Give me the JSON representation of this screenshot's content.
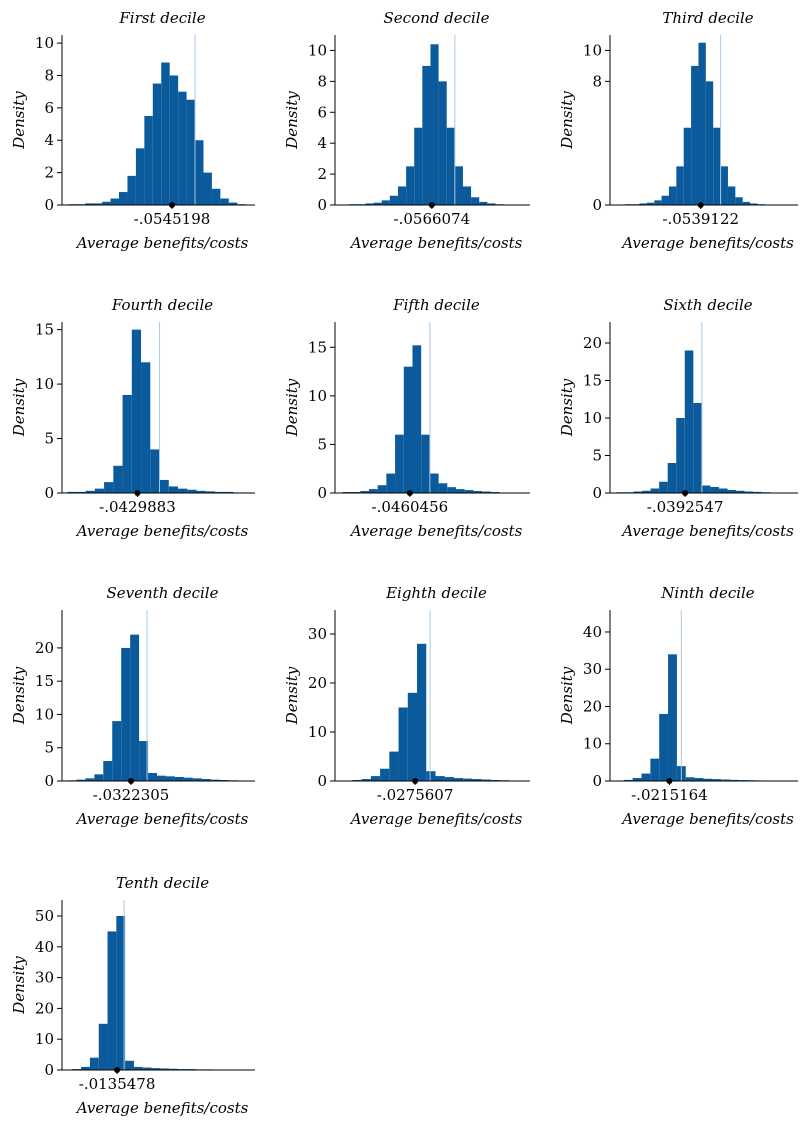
{
  "chart_data": [
    {
      "type": "histogram",
      "title": "First decile",
      "xlabel": "Average benefits/costs",
      "ylabel": "Density",
      "xlim": [
        -0.315,
        0.142
      ],
      "ylim": [
        0,
        10.5
      ],
      "yticks": [
        0,
        2,
        4,
        6,
        8,
        10
      ],
      "xticks": [
        {
          "value": -0.0545198,
          "label": "-.0545198"
        }
      ],
      "reference_line": 0,
      "color": "#0a5a9c",
      "bins": [
        -0.3,
        -0.28,
        -0.26,
        -0.24,
        -0.22,
        -0.2,
        -0.18,
        -0.16,
        -0.14,
        -0.12,
        -0.1,
        -0.08,
        -0.06,
        -0.04,
        -0.02,
        0,
        0.02,
        0.04,
        0.06,
        0.08,
        0.1,
        0.12
      ],
      "values": [
        0.05,
        0.05,
        0.1,
        0.1,
        0.2,
        0.4,
        0.8,
        1.8,
        3.5,
        5.5,
        7.5,
        8.8,
        8.0,
        7.0,
        6.5,
        4.0,
        2.0,
        1.0,
        0.4,
        0.15,
        0.05
      ]
    },
    {
      "type": "histogram",
      "title": "Second decile",
      "xlabel": "Average benefits/costs",
      "ylabel": "Density",
      "xlim": [
        -0.295,
        0.185
      ],
      "ylim": [
        0,
        11
      ],
      "yticks": [
        0,
        2,
        4,
        6,
        8,
        10
      ],
      "xticks": [
        {
          "value": -0.0566074,
          "label": "-.0566074"
        }
      ],
      "reference_line": 0,
      "color": "#0a5a9c",
      "bins": [
        -0.26,
        -0.24,
        -0.22,
        -0.2,
        -0.18,
        -0.16,
        -0.14,
        -0.12,
        -0.1,
        -0.08,
        -0.06,
        -0.04,
        -0.02,
        0,
        0.02,
        0.04,
        0.06,
        0.08,
        0.1,
        0.12,
        0.14
      ],
      "values": [
        0.05,
        0.05,
        0.1,
        0.15,
        0.3,
        0.6,
        1.2,
        2.5,
        5,
        9,
        10.4,
        8,
        5,
        2.5,
        1.2,
        0.5,
        0.2,
        0.1,
        0.05,
        0.02
      ]
    },
    {
      "type": "histogram",
      "title": "Third decile",
      "xlabel": "Average benefits/costs",
      "ylabel": "Density",
      "xlim": [
        -0.3,
        0.21
      ],
      "ylim": [
        0,
        11
      ],
      "yticks": [
        0,
        8,
        10
      ],
      "xticks": [
        {
          "value": -0.0539122,
          "label": "-.0539122"
        }
      ],
      "reference_line": 0,
      "color": "#0a5a9c",
      "bins": [
        -0.26,
        -0.24,
        -0.22,
        -0.2,
        -0.18,
        -0.16,
        -0.14,
        -0.12,
        -0.1,
        -0.08,
        -0.06,
        -0.04,
        -0.02,
        0,
        0.02,
        0.04,
        0.06,
        0.08,
        0.1,
        0.12,
        0.14
      ],
      "values": [
        0.05,
        0.05,
        0.1,
        0.15,
        0.3,
        0.6,
        1.2,
        2.5,
        5,
        9,
        10.5,
        8,
        5,
        2.5,
        1.2,
        0.5,
        0.2,
        0.1,
        0.05,
        0.02
      ]
    },
    {
      "type": "histogram",
      "title": "Fourth decile",
      "xlabel": "Average benefits/costs",
      "ylabel": "Density",
      "xlim": [
        -0.19,
        0.186
      ],
      "ylim": [
        0,
        15.7
      ],
      "yticks": [
        0,
        5,
        10,
        15
      ],
      "xticks": [
        {
          "value": -0.0429883,
          "label": "-.0429883"
        }
      ],
      "reference_line": 0,
      "color": "#0a5a9c",
      "bins": [
        -0.18,
        -0.162,
        -0.144,
        -0.126,
        -0.108,
        -0.09,
        -0.072,
        -0.054,
        -0.036,
        -0.018,
        0,
        0.018,
        0.036,
        0.054,
        0.072,
        0.09,
        0.108,
        0.126,
        0.144,
        0.162,
        0.18
      ],
      "values": [
        0.1,
        0.1,
        0.2,
        0.4,
        1,
        2.5,
        9,
        15,
        12,
        4,
        1.2,
        0.6,
        0.4,
        0.3,
        0.2,
        0.15,
        0.1,
        0.1,
        0.05,
        0.05
      ]
    },
    {
      "type": "histogram",
      "title": "Fifth decile",
      "xlabel": "Average benefits/costs",
      "ylabel": "Density",
      "xlim": [
        -0.218,
        0.23
      ],
      "ylim": [
        0,
        17.6
      ],
      "yticks": [
        0,
        5,
        10,
        15
      ],
      "xticks": [
        {
          "value": -0.0460456,
          "label": "-.0460456"
        }
      ],
      "reference_line": 0,
      "color": "#0a5a9c",
      "bins": [
        -0.2,
        -0.18,
        -0.16,
        -0.14,
        -0.12,
        -0.1,
        -0.08,
        -0.06,
        -0.04,
        -0.02,
        0,
        0.02,
        0.04,
        0.06,
        0.08,
        0.1,
        0.12,
        0.14,
        0.16,
        0.18,
        0.2
      ],
      "values": [
        0.1,
        0.1,
        0.2,
        0.4,
        0.8,
        2,
        6,
        13,
        15.2,
        6,
        2,
        1,
        0.6,
        0.4,
        0.3,
        0.2,
        0.15,
        0.1,
        0.05,
        0.05
      ]
    },
    {
      "type": "histogram",
      "title": "Sixth decile",
      "xlabel": "Average benefits/costs",
      "ylabel": "Density",
      "xlim": [
        -0.215,
        0.225
      ],
      "ylim": [
        0,
        22.8
      ],
      "yticks": [
        0,
        5,
        10,
        15,
        20
      ],
      "xticks": [
        {
          "value": -0.0392547,
          "label": "-.0392547"
        }
      ],
      "reference_line": 0,
      "color": "#0a5a9c",
      "bins": [
        -0.2,
        -0.18,
        -0.16,
        -0.14,
        -0.12,
        -0.1,
        -0.08,
        -0.06,
        -0.04,
        -0.02,
        0,
        0.02,
        0.04,
        0.06,
        0.08,
        0.1,
        0.12,
        0.14,
        0.16,
        0.18,
        0.2
      ],
      "values": [
        0.1,
        0.1,
        0.2,
        0.3,
        0.6,
        1.5,
        4,
        10,
        19,
        12,
        1,
        0.8,
        0.6,
        0.4,
        0.3,
        0.2,
        0.15,
        0.1,
        0.05,
        0.05
      ]
    },
    {
      "type": "histogram",
      "title": "Seventh decile",
      "xlabel": "Average benefits/costs",
      "ylabel": "Density",
      "xlim": [
        -0.171,
        0.217
      ],
      "ylim": [
        0,
        25.7
      ],
      "yticks": [
        0,
        5,
        10,
        15,
        20
      ],
      "xticks": [
        {
          "value": -0.0322305,
          "label": "-.0322305"
        }
      ],
      "reference_line": 0,
      "color": "#0a5a9c",
      "bins": [
        -0.16,
        -0.142,
        -0.124,
        -0.106,
        -0.088,
        -0.07,
        -0.052,
        -0.034,
        -0.016,
        0.002,
        0.02,
        0.038,
        0.056,
        0.074,
        0.092,
        0.11,
        0.128,
        0.146,
        0.164,
        0.182,
        0.2
      ],
      "values": [
        0.1,
        0.2,
        0.4,
        1,
        3,
        9,
        20,
        22,
        6,
        1.2,
        0.8,
        0.7,
        0.6,
        0.5,
        0.4,
        0.3,
        0.2,
        0.15,
        0.1,
        0.05
      ]
    },
    {
      "type": "histogram",
      "title": "Eighth decile",
      "xlabel": "Average benefits/costs",
      "ylabel": "Density",
      "xlim": [
        -0.175,
        0.184
      ],
      "ylim": [
        0,
        34.9
      ],
      "yticks": [
        0,
        10,
        20,
        30
      ],
      "xticks": [
        {
          "value": -0.0275607,
          "label": "-.0275607"
        }
      ],
      "reference_line": 0,
      "color": "#0a5a9c",
      "bins": [
        -0.16,
        -0.143,
        -0.126,
        -0.109,
        -0.092,
        -0.075,
        -0.058,
        -0.041,
        -0.024,
        -0.007,
        0.01,
        0.027,
        0.044,
        0.061,
        0.078,
        0.095,
        0.112,
        0.129,
        0.146,
        0.163,
        0.18
      ],
      "values": [
        0.1,
        0.2,
        0.4,
        1,
        2.5,
        6,
        15,
        18,
        28,
        2,
        1,
        0.8,
        0.6,
        0.5,
        0.4,
        0.3,
        0.2,
        0.15,
        0.1,
        0.05
      ]
    },
    {
      "type": "histogram",
      "title": "Ninth decile",
      "xlabel": "Average benefits/costs",
      "ylabel": "Density",
      "xlim": [
        -0.129,
        0.211
      ],
      "ylim": [
        0,
        45.9
      ],
      "yticks": [
        0,
        10,
        20,
        30,
        40
      ],
      "xticks": [
        {
          "value": -0.0215164,
          "label": "-.0215164"
        }
      ],
      "reference_line": 0,
      "color": "#0a5a9c",
      "bins": [
        -0.12,
        -0.104,
        -0.088,
        -0.072,
        -0.056,
        -0.04,
        -0.024,
        -0.008,
        0.008,
        0.024,
        0.04,
        0.056,
        0.072,
        0.088,
        0.104,
        0.12,
        0.136,
        0.152,
        0.168,
        0.184,
        0.2
      ],
      "values": [
        0.1,
        0.3,
        0.8,
        2,
        6,
        18,
        34,
        4,
        1,
        0.8,
        0.6,
        0.5,
        0.4,
        0.3,
        0.25,
        0.2,
        0.15,
        0.1,
        0.05,
        0.05
      ]
    },
    {
      "type": "histogram",
      "title": "Tenth decile",
      "xlabel": "Average benefits/costs",
      "ylabel": "Density",
      "xlim": [
        -0.12,
        0.253
      ],
      "ylim": [
        0,
        55.2
      ],
      "yticks": [
        0,
        10,
        20,
        30,
        40,
        50
      ],
      "xticks": [
        {
          "value": -0.0135478,
          "label": "-.0135478"
        }
      ],
      "reference_line": 0,
      "color": "#0a5a9c",
      "bins": [
        -0.1,
        -0.083,
        -0.066,
        -0.049,
        -0.032,
        -0.015,
        0.002,
        0.019,
        0.036,
        0.053,
        0.07,
        0.087,
        0.104,
        0.121,
        0.138,
        0.155,
        0.172,
        0.189,
        0.206,
        0.223,
        0.24
      ],
      "values": [
        0.3,
        1,
        4,
        15,
        45,
        50,
        3,
        1,
        0.8,
        0.6,
        0.5,
        0.4,
        0.3,
        0.3,
        0.2,
        0.2,
        0.15,
        0.1,
        0.05,
        0.05
      ]
    }
  ]
}
